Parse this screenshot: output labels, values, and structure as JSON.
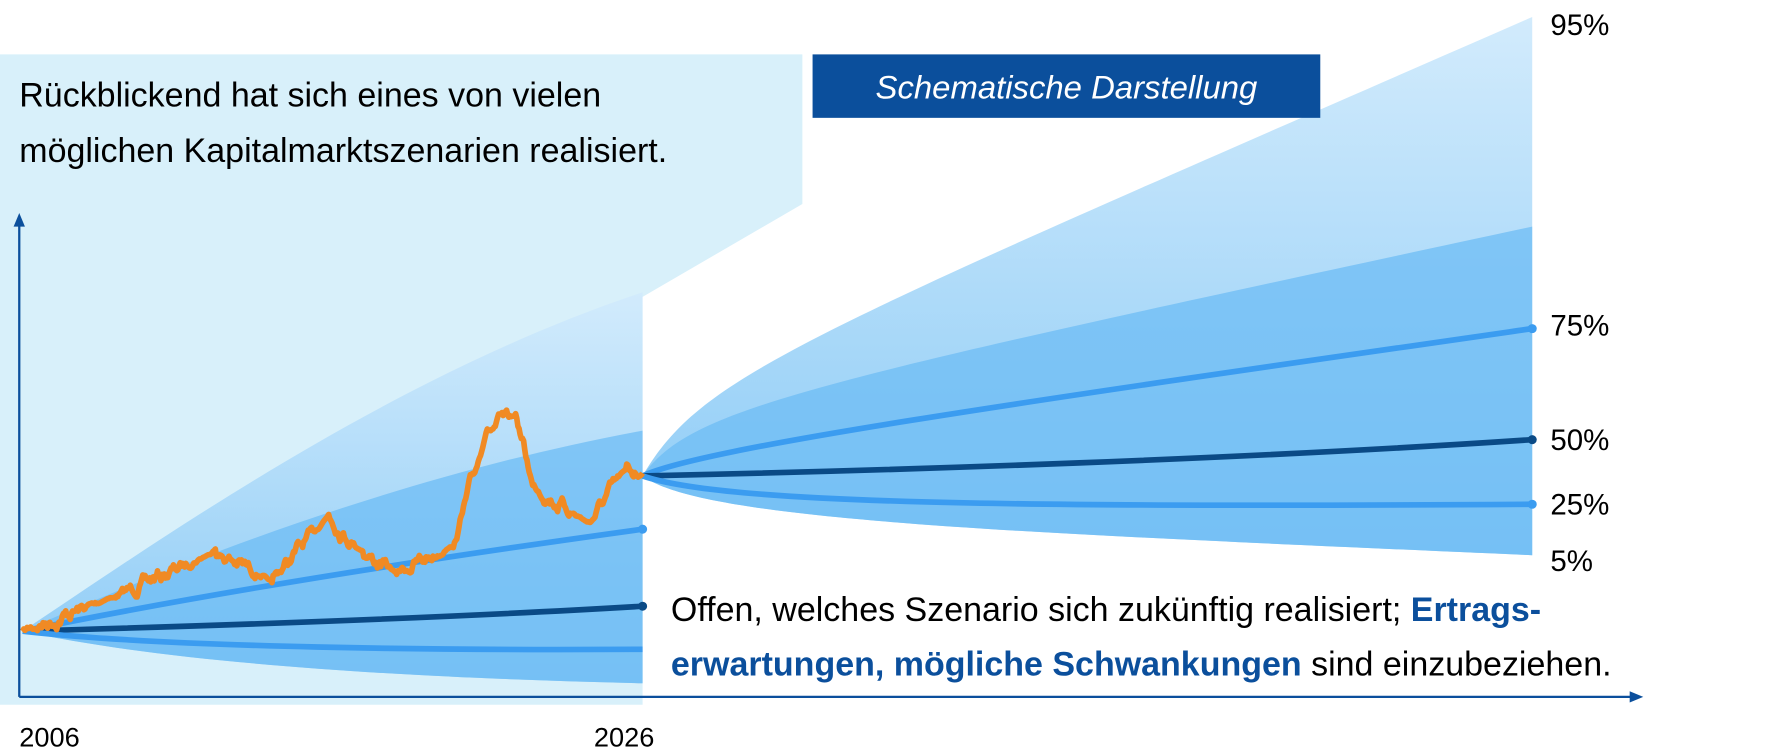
{
  "retrospective": [
    "Rückblickend hat sich eines von vielen",
    "möglichen Kapitalmarktszenarien realisiert."
  ],
  "badge": "Schematische Darstellung",
  "outlook": {
    "line1_plain": "Offen, welches Szenario sich zukünftig realisiert; ",
    "line1_bold": "Ertrags-",
    "line2_bold": "erwartungen, mögliche Schwankungen",
    "line2_plain": " sind einzubeziehen."
  },
  "percentiles": [
    "95%",
    "75%",
    "50%",
    "25%",
    "5%"
  ],
  "x_labels": [
    "2006",
    "2026"
  ]
}
